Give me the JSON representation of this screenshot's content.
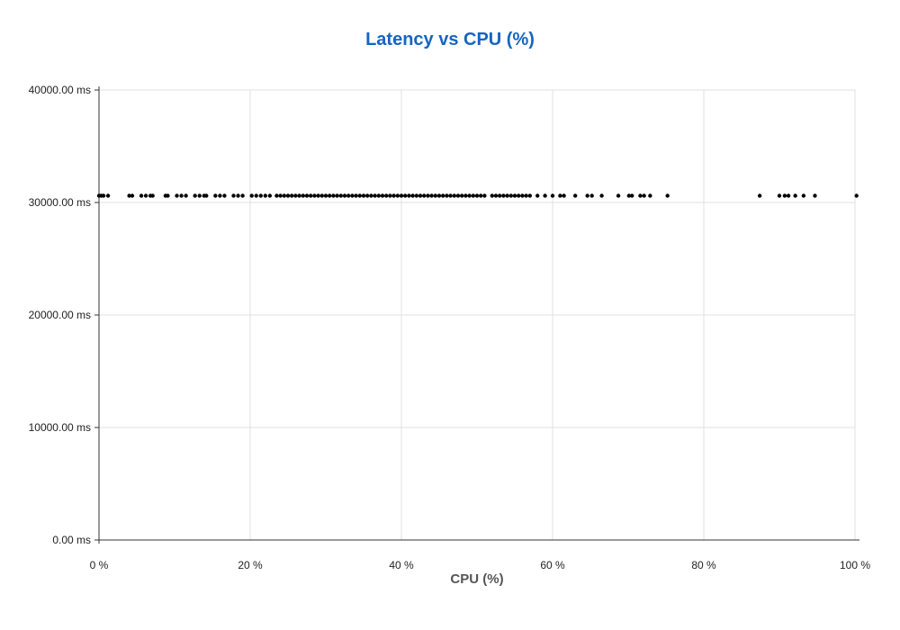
{
  "chart_data": {
    "type": "scatter",
    "title": "Latency vs CPU (%)",
    "xlabel": "CPU (%)",
    "ylabel": "",
    "xlim": [
      0,
      100
    ],
    "ylim": [
      0,
      40000
    ],
    "x_ticks": [
      0,
      20,
      40,
      60,
      80,
      100
    ],
    "x_tick_labels": [
      "0 %",
      "20 %",
      "40 %",
      "60 %",
      "80 %",
      "100 %"
    ],
    "y_ticks": [
      0,
      10000,
      20000,
      30000,
      40000
    ],
    "y_tick_labels": [
      "0.00 ms",
      "10000.00 ms",
      "20000.00 ms",
      "30000.00 ms",
      "40000.00 ms"
    ],
    "grid": true,
    "legend": "none",
    "title_color": "#1565c0",
    "point_color": "#000000",
    "series": [
      {
        "values": [
          [
            0.0,
            30600
          ],
          [
            0.3,
            30600
          ],
          [
            0.6,
            30600
          ],
          [
            1.2,
            30600
          ],
          [
            4.0,
            30600
          ],
          [
            4.4,
            30600
          ],
          [
            5.6,
            30600
          ],
          [
            6.2,
            30600
          ],
          [
            6.8,
            30600
          ],
          [
            7.1,
            30600
          ],
          [
            8.8,
            30600
          ],
          [
            9.1,
            30600
          ],
          [
            10.3,
            30600
          ],
          [
            10.9,
            30600
          ],
          [
            11.5,
            30600
          ],
          [
            12.7,
            30600
          ],
          [
            13.3,
            30600
          ],
          [
            13.9,
            30600
          ],
          [
            14.2,
            30600
          ],
          [
            15.4,
            30600
          ],
          [
            16.0,
            30600
          ],
          [
            16.6,
            30600
          ],
          [
            17.8,
            30600
          ],
          [
            18.4,
            30600
          ],
          [
            19.0,
            30600
          ],
          [
            20.2,
            30600
          ],
          [
            20.8,
            30600
          ],
          [
            21.4,
            30600
          ],
          [
            22.0,
            30600
          ],
          [
            22.6,
            30600
          ],
          [
            23.5,
            30600
          ],
          [
            24.0,
            30600
          ],
          [
            24.5,
            30600
          ],
          [
            25.0,
            30600
          ],
          [
            25.5,
            30600
          ],
          [
            26.0,
            30600
          ],
          [
            26.5,
            30600
          ],
          [
            27.0,
            30600
          ],
          [
            27.5,
            30600
          ],
          [
            28.0,
            30600
          ],
          [
            28.5,
            30600
          ],
          [
            29.0,
            30600
          ],
          [
            29.5,
            30600
          ],
          [
            30.0,
            30600
          ],
          [
            30.5,
            30600
          ],
          [
            31.0,
            30600
          ],
          [
            31.5,
            30600
          ],
          [
            32.0,
            30600
          ],
          [
            32.5,
            30600
          ],
          [
            33.0,
            30600
          ],
          [
            33.5,
            30600
          ],
          [
            34.0,
            30600
          ],
          [
            34.5,
            30600
          ],
          [
            35.0,
            30600
          ],
          [
            35.5,
            30600
          ],
          [
            36.0,
            30600
          ],
          [
            36.5,
            30600
          ],
          [
            37.0,
            30600
          ],
          [
            37.5,
            30600
          ],
          [
            38.0,
            30600
          ],
          [
            38.5,
            30600
          ],
          [
            39.0,
            30600
          ],
          [
            39.5,
            30600
          ],
          [
            40.0,
            30600
          ],
          [
            40.5,
            30600
          ],
          [
            41.0,
            30600
          ],
          [
            41.5,
            30600
          ],
          [
            42.0,
            30600
          ],
          [
            42.5,
            30600
          ],
          [
            43.0,
            30600
          ],
          [
            43.5,
            30600
          ],
          [
            44.0,
            30600
          ],
          [
            44.5,
            30600
          ],
          [
            45.0,
            30600
          ],
          [
            45.5,
            30600
          ],
          [
            46.0,
            30600
          ],
          [
            46.5,
            30600
          ],
          [
            47.0,
            30600
          ],
          [
            47.5,
            30600
          ],
          [
            48.0,
            30600
          ],
          [
            48.5,
            30600
          ],
          [
            49.0,
            30600
          ],
          [
            49.5,
            30600
          ],
          [
            50.0,
            30600
          ],
          [
            50.5,
            30600
          ],
          [
            51.0,
            30600
          ],
          [
            52.0,
            30600
          ],
          [
            52.5,
            30600
          ],
          [
            53.0,
            30600
          ],
          [
            53.5,
            30600
          ],
          [
            54.0,
            30600
          ],
          [
            54.5,
            30600
          ],
          [
            55.0,
            30600
          ],
          [
            55.5,
            30600
          ],
          [
            56.0,
            30600
          ],
          [
            56.5,
            30600
          ],
          [
            57.0,
            30600
          ],
          [
            58.0,
            30600
          ],
          [
            59.0,
            30600
          ],
          [
            60.0,
            30600
          ],
          [
            61.0,
            30600
          ],
          [
            61.5,
            30600
          ],
          [
            63.0,
            30600
          ],
          [
            64.6,
            30600
          ],
          [
            65.2,
            30600
          ],
          [
            66.5,
            30600
          ],
          [
            68.7,
            30600
          ],
          [
            70.1,
            30600
          ],
          [
            70.5,
            30600
          ],
          [
            71.6,
            30600
          ],
          [
            72.1,
            30600
          ],
          [
            72.9,
            30600
          ],
          [
            75.2,
            30600
          ],
          [
            87.4,
            30600
          ],
          [
            90.0,
            30600
          ],
          [
            90.7,
            30600
          ],
          [
            91.2,
            30600
          ],
          [
            92.1,
            30600
          ],
          [
            93.2,
            30600
          ],
          [
            94.7,
            30600
          ],
          [
            100.2,
            30600
          ]
        ]
      }
    ]
  }
}
